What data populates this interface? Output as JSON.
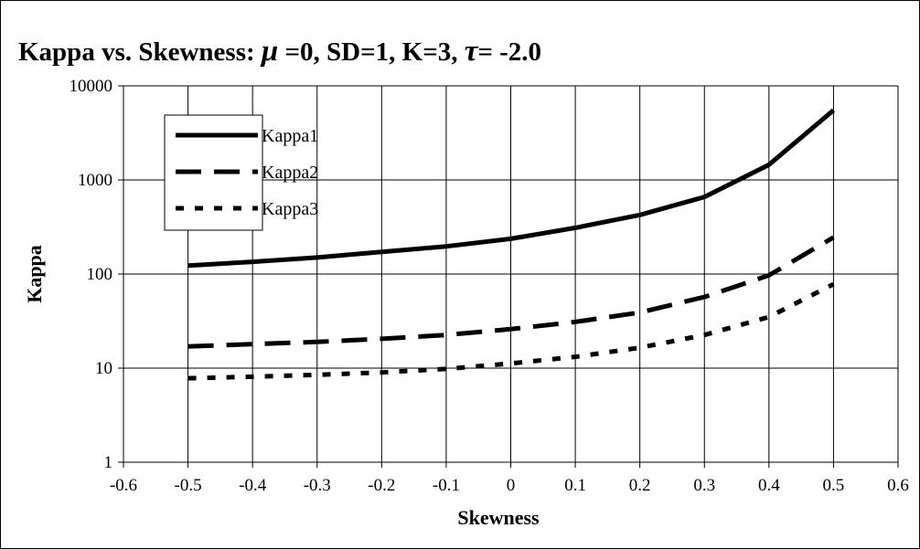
{
  "chart_data": {
    "type": "line",
    "title": {
      "prefix": "Kappa vs. Skewness: ",
      "mu_symbol": "μ",
      "mid": " =0, SD=1, K=3, ",
      "tau_symbol": "τ",
      "suffix": "= -2.0"
    },
    "xlabel": "Skewness",
    "ylabel": "Kappa",
    "xlim": [
      -0.6,
      0.6
    ],
    "ylim": [
      1,
      10000
    ],
    "y_scale": "log",
    "grid": true,
    "legend_position": "top-left",
    "x_ticks": [
      "-0.6",
      "-0.5",
      "-0.4",
      "-0.3",
      "-0.2",
      "-0.1",
      "0",
      "0.1",
      "0.2",
      "0.3",
      "0.4",
      "0.5",
      "0.6"
    ],
    "y_ticks": [
      "1",
      "10",
      "100",
      "1000",
      "10000"
    ],
    "x": [
      -0.5,
      -0.4,
      -0.3,
      -0.2,
      -0.1,
      0,
      0.1,
      0.2,
      0.3,
      0.4,
      0.5
    ],
    "series": [
      {
        "name": "Kappa1",
        "style": "solid",
        "values": [
          123,
          135,
          150,
          172,
          197,
          237,
          310,
          425,
          660,
          1450,
          5500
        ]
      },
      {
        "name": "Kappa2",
        "style": "dashed",
        "values": [
          17,
          18,
          19,
          20.5,
          22.5,
          26,
          31,
          39,
          57,
          97,
          245
        ]
      },
      {
        "name": "Kappa3",
        "style": "dotted",
        "values": [
          7.8,
          8.1,
          8.5,
          9.0,
          9.8,
          11.2,
          13.2,
          16.5,
          22.5,
          35,
          78
        ]
      }
    ]
  }
}
